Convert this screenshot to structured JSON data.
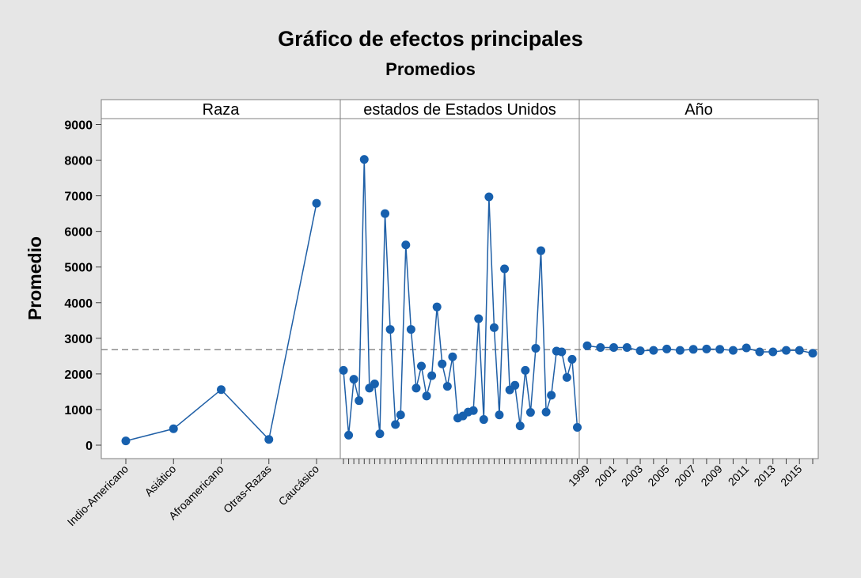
{
  "chart_data": {
    "type": "line",
    "title": "Gráfico de efectos principales",
    "subtitle": "Promedios",
    "ylabel": "Promedio",
    "ylim": [
      -400,
      9150
    ],
    "yticks": [
      0,
      1000,
      2000,
      3000,
      4000,
      5000,
      6000,
      7000,
      8000,
      9000
    ],
    "reference_line": 2680,
    "colors": {
      "line": "#1f5fa6",
      "marker": "#1760ae",
      "background": "#e6e6e6",
      "plot": "#ffffff",
      "reference": "#8c8c8c"
    },
    "panels": [
      {
        "label": "Raza",
        "categories": [
          "Indio-Americano",
          "Asiático",
          "Afroamericano",
          "Otras-Razas",
          "Caucásico"
        ],
        "values": [
          120,
          460,
          1560,
          160,
          6790
        ],
        "tick_labels": [
          "Indio-Americano",
          "Asiático",
          "Afroamericano",
          "Otras-Razas",
          "Caucásico"
        ]
      },
      {
        "label": "estados de Estados Unidos",
        "values": [
          2100,
          280,
          1850,
          1250,
          8020,
          1600,
          1720,
          320,
          6500,
          3250,
          580,
          850,
          5620,
          3250,
          1600,
          2220,
          1380,
          1950,
          3880,
          2280,
          1650,
          2480,
          760,
          820,
          930,
          970,
          3550,
          720,
          6970,
          3300,
          850,
          4950,
          1550,
          1680,
          540,
          2100,
          920,
          2720,
          5460,
          930,
          1400,
          2640,
          2620,
          1900,
          2410,
          500
        ],
        "tick_labels": []
      },
      {
        "label": "Año",
        "categories": [
          "1999",
          "2000",
          "2001",
          "2002",
          "2003",
          "2004",
          "2005",
          "2006",
          "2007",
          "2008",
          "2009",
          "2010",
          "2011",
          "2012",
          "2013",
          "2014",
          "2015",
          "2016"
        ],
        "values": [
          2790,
          2740,
          2740,
          2740,
          2650,
          2660,
          2700,
          2660,
          2690,
          2700,
          2690,
          2660,
          2730,
          2620,
          2620,
          2660,
          2660,
          2580
        ],
        "tick_labels": [
          "1999",
          "",
          "2001",
          "",
          "2003",
          "",
          "2005",
          "",
          "2007",
          "",
          "2009",
          "",
          "2011",
          "",
          "2013",
          "",
          "2015",
          ""
        ]
      }
    ]
  }
}
